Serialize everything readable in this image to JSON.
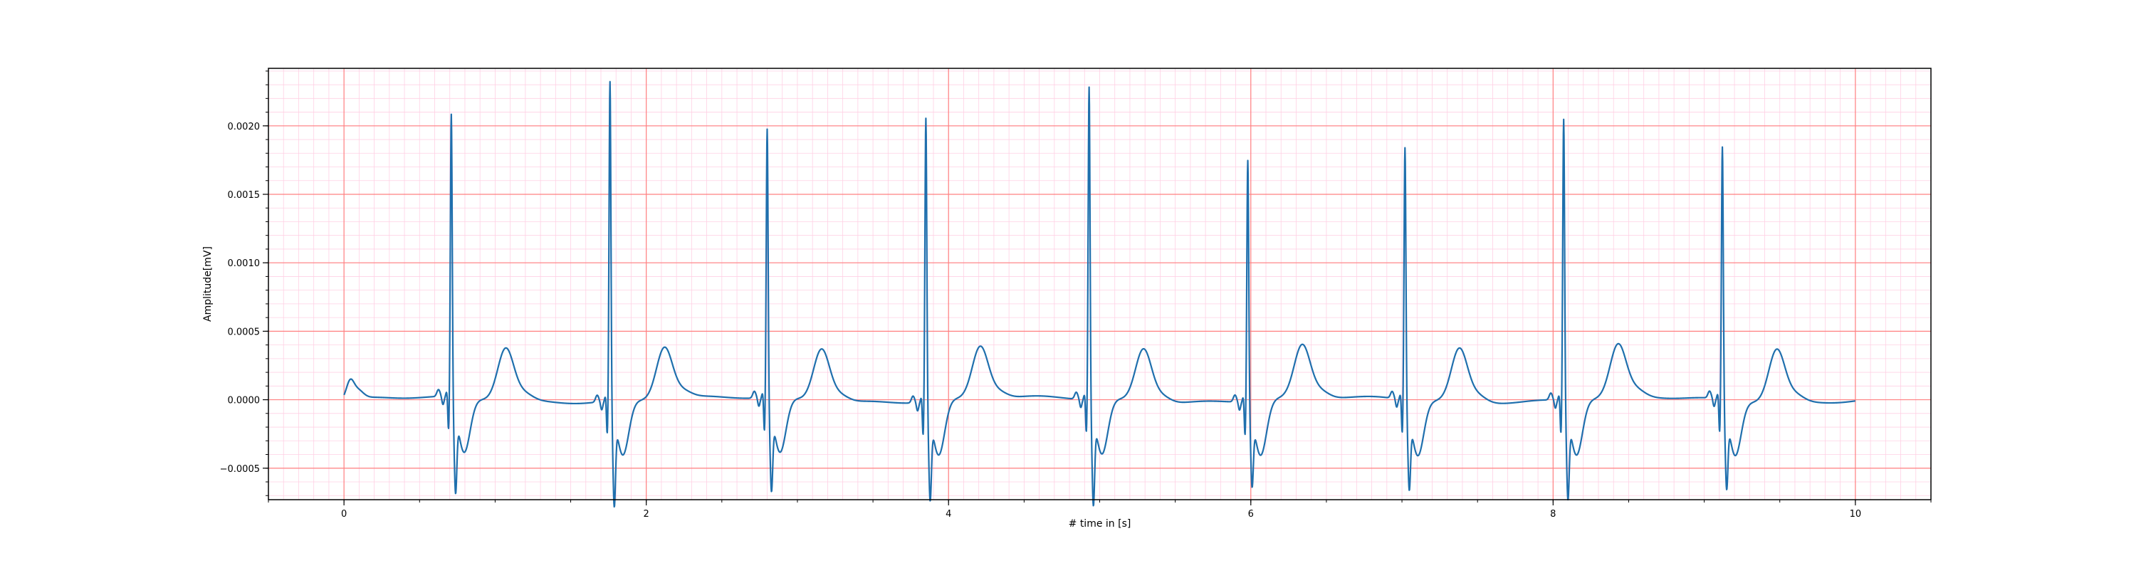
{
  "chart_data": {
    "type": "line",
    "title": "",
    "xlabel": "# time in [s]",
    "ylabel": "Amplitude[mV]",
    "xlim": [
      -0.5,
      10.5
    ],
    "ylim": [
      -0.00073,
      0.00242
    ],
    "x_ticks": [
      0,
      2,
      4,
      6,
      8,
      10
    ],
    "x_tick_labels": [
      "0",
      "2",
      "4",
      "6",
      "8",
      "10"
    ],
    "y_ticks": [
      -0.0005,
      0.0,
      0.0005,
      0.001,
      0.0015,
      0.002
    ],
    "y_tick_labels": [
      "−0.0005",
      "0.0000",
      "0.0005",
      "0.0010",
      "0.0015",
      "0.0020"
    ],
    "grid": {
      "major": true,
      "minor": true,
      "major_color": "#ff8080",
      "minor_color": "#ffd0e4"
    },
    "line_color": "#1f6fad",
    "legend": "none",
    "beats": [
      {
        "r_time": 0.71,
        "r_peak": 0.002,
        "s_min": -0.00052
      },
      {
        "r_time": 1.76,
        "r_peak": 0.00227,
        "s_min": -0.00059
      },
      {
        "r_time": 2.8,
        "r_peak": 0.0019,
        "s_min": -0.0005
      },
      {
        "r_time": 3.85,
        "r_peak": 0.00201,
        "s_min": -0.00054
      },
      {
        "r_time": 4.93,
        "r_peak": 0.00222,
        "s_min": -0.00059
      },
      {
        "r_time": 5.98,
        "r_peak": 0.0017,
        "s_min": -0.00044
      },
      {
        "r_time": 7.02,
        "r_peak": 0.00178,
        "s_min": -0.00047
      },
      {
        "r_time": 8.07,
        "r_peak": 0.00199,
        "s_min": -0.00054
      },
      {
        "r_time": 9.12,
        "r_peak": 0.00178,
        "s_min": -0.00047
      }
    ],
    "series": [
      {
        "x": [
          0.0,
          0.03,
          0.06,
          0.1,
          0.15,
          0.2,
          0.3,
          0.4,
          0.5,
          0.6,
          0.63,
          0.65,
          0.67
        ],
        "y": [
          3e-05,
          0.00011,
          0.00012,
          8e-05,
          2e-05,
          0.0,
          -1e-05,
          -1e-05,
          0.0,
          0.0,
          4e-05,
          1e-05,
          -3e-05
        ]
      }
    ]
  }
}
